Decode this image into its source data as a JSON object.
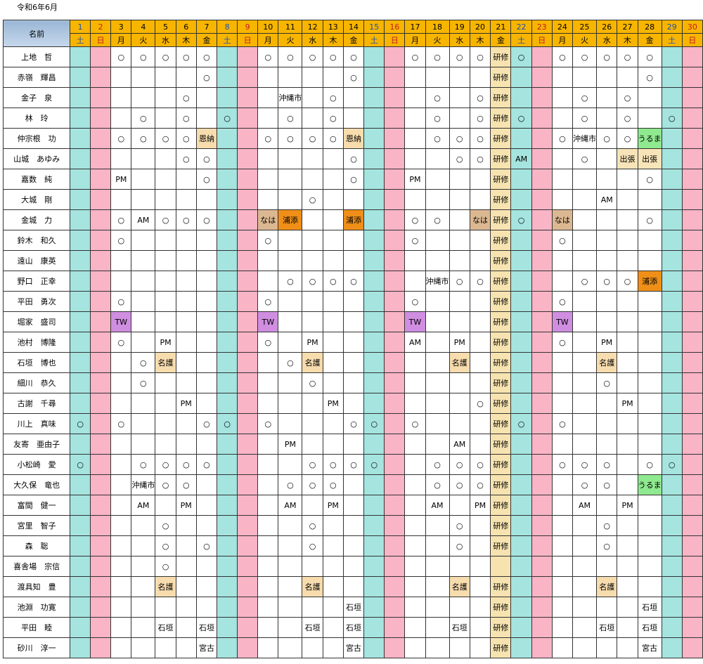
{
  "title": "令和6年6月",
  "name_header": "名前",
  "dates": [
    "1",
    "2",
    "3",
    "4",
    "5",
    "6",
    "7",
    "8",
    "9",
    "10",
    "11",
    "12",
    "13",
    "14",
    "15",
    "16",
    "17",
    "18",
    "19",
    "20",
    "21",
    "22",
    "23",
    "24",
    "25",
    "26",
    "27",
    "28",
    "29",
    "30"
  ],
  "weekdays": [
    "土",
    "日",
    "月",
    "火",
    "水",
    "木",
    "金",
    "土",
    "日",
    "月",
    "火",
    "水",
    "木",
    "金",
    "土",
    "日",
    "月",
    "火",
    "水",
    "木",
    "金",
    "土",
    "日",
    "月",
    "火",
    "水",
    "木",
    "金",
    "土",
    "日"
  ],
  "rows": [
    {
      "name": "上地　哲",
      "cells": {
        "3": "○",
        "4": "○",
        "5": "○",
        "6": "○",
        "7": "○",
        "10": "○",
        "11": "○",
        "12": "○",
        "13": "○",
        "14": "○",
        "17": "○",
        "18": "○",
        "19": "○",
        "20": "○",
        "21": "研修",
        "22": "○",
        "24": "○",
        "25": "○",
        "26": "○",
        "27": "○",
        "28": "○"
      }
    },
    {
      "name": "赤嶺　輝昌",
      "cells": {
        "7": "○",
        "14": "○",
        "21": "研修",
        "28": "○"
      }
    },
    {
      "name": "金子　泉",
      "cells": {
        "6": "○",
        "11": "沖縄市",
        "13": "○",
        "18": "○",
        "20": "○",
        "21": "研修",
        "25": "○",
        "27": "○"
      }
    },
    {
      "name": "林　玲",
      "cells": {
        "4": "○",
        "6": "○",
        "8": "○",
        "11": "○",
        "13": "○",
        "18": "○",
        "20": "○",
        "21": "研修",
        "22": "○",
        "25": "○",
        "27": "○",
        "29": "○"
      }
    },
    {
      "name": "仲宗根　功",
      "cells": {
        "3": "○",
        "4": "○",
        "5": "○",
        "6": "○",
        "7": "恩納",
        "10": "○",
        "11": "○",
        "12": "○",
        "13": "○",
        "14": "恩納",
        "18": "○",
        "19": "○",
        "20": "○",
        "21": "研修",
        "24": "○",
        "25": "沖縄市",
        "26": "○",
        "27": "○",
        "28": "うるま"
      }
    },
    {
      "name": "山城　あゆみ",
      "cells": {
        "6": "○",
        "7": "○",
        "14": "○",
        "19": "○",
        "20": "○",
        "21": "研修",
        "22": "AM",
        "25": "○",
        "27": "出張",
        "28": "出張"
      }
    },
    {
      "name": "嘉数　純",
      "cells": {
        "3": "PM",
        "7": "○",
        "14": "○",
        "17": "PM",
        "21": "研修",
        "28": "○"
      }
    },
    {
      "name": "大城　剛",
      "cells": {
        "12": "○",
        "21": "研修",
        "26": "AM"
      }
    },
    {
      "name": "金城　力",
      "cells": {
        "3": "○",
        "4": "AM",
        "5": "○",
        "6": "○",
        "7": "○",
        "10": "なは",
        "11": "浦添",
        "14": "浦添",
        "17": "○",
        "18": "○",
        "20": "なは",
        "21": "研修",
        "22": "○",
        "24": "なは",
        "28": "○"
      }
    },
    {
      "name": "鈴木　和久",
      "cells": {
        "3": "○",
        "10": "○",
        "17": "○",
        "21": "研修",
        "24": "○"
      }
    },
    {
      "name": "遠山　康英",
      "cells": {
        "21": "研修"
      }
    },
    {
      "name": "野口　正幸",
      "cells": {
        "11": "○",
        "12": "○",
        "13": "○",
        "14": "○",
        "18": "沖縄市",
        "19": "○",
        "20": "○",
        "21": "研修",
        "25": "○",
        "26": "○",
        "27": "○",
        "28": "浦添"
      }
    },
    {
      "name": "平田　勇次",
      "cells": {
        "3": "○",
        "10": "○",
        "17": "○",
        "21": "研修",
        "24": "○"
      }
    },
    {
      "name": "堀家　盛司",
      "cells": {
        "3": "TW",
        "10": "TW",
        "17": "TW",
        "21": "研修",
        "24": "TW"
      }
    },
    {
      "name": "池村　博隆",
      "cells": {
        "3": "○",
        "5": "PM",
        "10": "○",
        "12": "PM",
        "17": "AM",
        "19": "PM",
        "21": "研修",
        "24": "○",
        "26": "PM"
      }
    },
    {
      "name": "石垣　博也",
      "cells": {
        "4": "○",
        "5": "名護",
        "11": "○",
        "12": "名護",
        "19": "名護",
        "21": "研修",
        "26": "名護"
      }
    },
    {
      "name": "細川　恭久",
      "cells": {
        "4": "○",
        "12": "○",
        "21": "研修",
        "26": "○"
      }
    },
    {
      "name": "古謝　千尋",
      "cells": {
        "6": "PM",
        "13": "PM",
        "20": "○",
        "21": "研修",
        "27": "PM"
      }
    },
    {
      "name": "川上　真味",
      "cells": {
        "1": "○",
        "3": "○",
        "7": "○",
        "8": "○",
        "10": "○",
        "14": "○",
        "15": "○",
        "17": "○",
        "21": "研修",
        "22": "○",
        "24": "○"
      }
    },
    {
      "name": "友寄　亜由子",
      "cells": {
        "11": "PM",
        "19": "AM",
        "21": "研修"
      }
    },
    {
      "name": "小松崎　愛",
      "cells": {
        "1": "○",
        "4": "○",
        "5": "○",
        "6": "○",
        "7": "○",
        "12": "○",
        "13": "○",
        "14": "○",
        "15": "○",
        "18": "○",
        "19": "○",
        "20": "○",
        "21": "研修",
        "24": "○",
        "25": "○",
        "26": "○",
        "28": "○",
        "29": "○"
      }
    },
    {
      "name": "大久保　竜也",
      "cells": {
        "4": "沖縄市",
        "5": "○",
        "6": "○",
        "11": "○",
        "12": "○",
        "13": "○",
        "18": "○",
        "19": "○",
        "20": "○",
        "21": "研修",
        "25": "○",
        "26": "○",
        "28": "うるま"
      }
    },
    {
      "name": "富間　健一",
      "cells": {
        "4": "AM",
        "6": "PM",
        "11": "AM",
        "13": "PM",
        "18": "AM",
        "20": "PM",
        "21": "研修",
        "25": "AM",
        "27": "PM"
      }
    },
    {
      "name": "宮里　智子",
      "cells": {
        "5": "○",
        "12": "○",
        "19": "○",
        "21": "研修",
        "26": "○"
      }
    },
    {
      "name": "森　聡",
      "cells": {
        "5": "○",
        "7": "○",
        "12": "○",
        "19": "○",
        "21": "研修",
        "26": "○"
      }
    },
    {
      "name": "喜舎場　宗信",
      "cells": {
        "5": "○"
      }
    },
    {
      "name": "渡具知　豊",
      "cells": {
        "5": "名護",
        "12": "名護",
        "19": "名護",
        "21": "研修",
        "26": "名護"
      }
    },
    {
      "name": "池淵　功寛",
      "cells": {
        "14": "石垣",
        "21": "研修",
        "28": "石垣"
      }
    },
    {
      "name": "平田　睦",
      "cells": {
        "5": "石垣",
        "7": "石垣",
        "12": "石垣",
        "14": "石垣",
        "19": "石垣",
        "21": "研修",
        "26": "石垣",
        "28": "石垣"
      }
    },
    {
      "name": "砂川　淳一",
      "cells": {
        "7": "宮古",
        "14": "宮古",
        "21": "研修",
        "28": "宮古"
      }
    }
  ],
  "colors": {
    "header": "#f7b500",
    "saturday": "#a5e4df",
    "sunday": "#f9b4c6",
    "training": "#f6e3b0",
    "tw": "#cf8ee0",
    "urasoe": "#ef8f18",
    "uruma": "#8fe98f",
    "naha": "#dcb892"
  }
}
